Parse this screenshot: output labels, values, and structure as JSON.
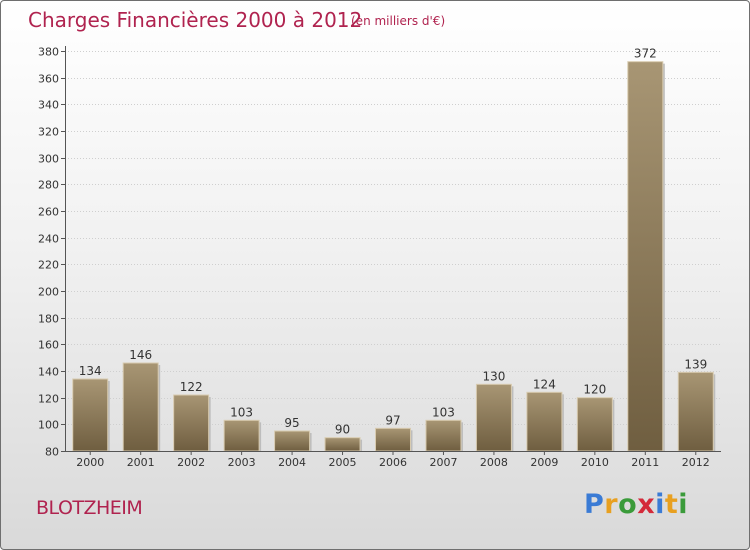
{
  "header": {
    "title": "Charges Financières 2000 à 2012",
    "subtitle": "(en milliers d'€)"
  },
  "footer": {
    "place": "BLOTZHEIM",
    "logo": [
      "P",
      "r",
      "o",
      "x",
      "i",
      "t",
      "i"
    ],
    "logo_colors": [
      "#3a7bd5",
      "#e8a020",
      "#3a9b3a",
      "#d42a3a",
      "#3a7bd5",
      "#e8a020",
      "#3a9b3a"
    ]
  },
  "chart_data": {
    "type": "bar",
    "title": "Charges Financières 2000 à 2012",
    "subtitle": "(en milliers d'€)",
    "categories": [
      "2000",
      "2001",
      "2002",
      "2003",
      "2004",
      "2005",
      "2006",
      "2007",
      "2008",
      "2009",
      "2010",
      "2011",
      "2012"
    ],
    "values": [
      134,
      146,
      122,
      103,
      95,
      90,
      97,
      103,
      130,
      124,
      120,
      372,
      139
    ],
    "ylim": [
      80,
      380
    ],
    "yticks": [
      80,
      100,
      120,
      140,
      160,
      180,
      200,
      220,
      240,
      260,
      280,
      300,
      320,
      340,
      360,
      380
    ],
    "grid": true,
    "bar_color": "#8b7a5c"
  }
}
